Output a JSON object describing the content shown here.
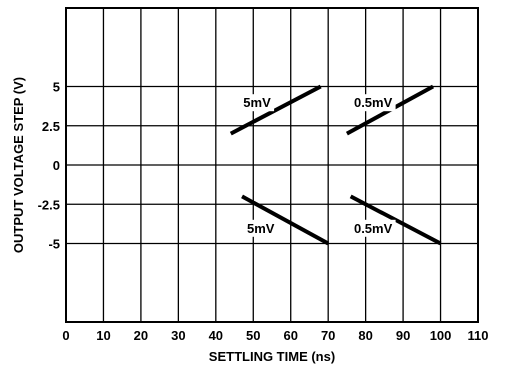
{
  "chart_data": {
    "type": "line",
    "xlabel": "SETTLING TIME (ns)",
    "ylabel": "OUTPUT VOLTAGE STEP (V)",
    "xlim": [
      0,
      110
    ],
    "ylim": [
      -10,
      10
    ],
    "xticks": [
      0,
      10,
      20,
      30,
      40,
      50,
      60,
      70,
      80,
      90,
      100,
      110
    ],
    "yticks": [
      5,
      2.5,
      0,
      -2.5,
      -5
    ],
    "ytick_labels": [
      "5",
      "2.5",
      "0",
      "-2.5",
      "-5"
    ],
    "grid": true,
    "series": [
      {
        "points": [
          [
            44,
            2
          ],
          [
            68,
            5
          ]
        ]
      },
      {
        "points": [
          [
            75,
            2
          ],
          [
            98,
            5
          ]
        ]
      },
      {
        "points": [
          [
            47,
            -2
          ],
          [
            70,
            -5
          ]
        ]
      },
      {
        "points": [
          [
            76,
            -2
          ],
          [
            100,
            -5
          ]
        ]
      }
    ],
    "annotations": [
      {
        "text": "5mV",
        "x": 51,
        "y": 4
      },
      {
        "text": "0.5mV",
        "x": 82,
        "y": 4
      },
      {
        "text": "5mV",
        "x": 52,
        "y": -4
      },
      {
        "text": "0.5mV",
        "x": 82,
        "y": -4
      }
    ]
  }
}
